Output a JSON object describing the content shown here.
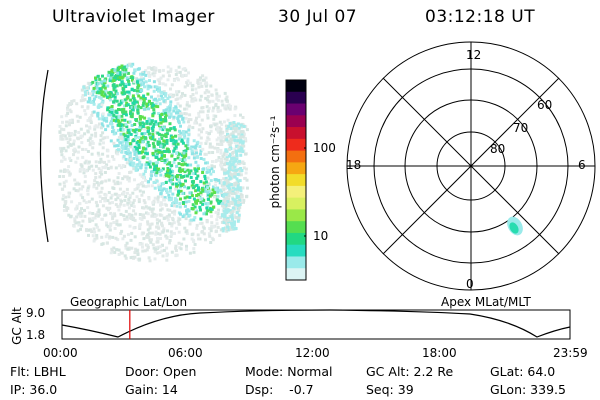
{
  "header": {
    "instrument": "Ultraviolet Imager",
    "date": "30 Jul 07",
    "time": "03:12:18 UT"
  },
  "colorbar": {
    "unit_label": "photon cm⁻²s⁻¹",
    "ticks": [
      "100",
      "10"
    ],
    "colors": [
      "#000010",
      "#2a0050",
      "#6a0070",
      "#9a0050",
      "#c8102e",
      "#ee2b1c",
      "#f36f10",
      "#f6a712",
      "#f2dc2a",
      "#f4f07a",
      "#d8f060",
      "#9ae848",
      "#55de50",
      "#22d882",
      "#28dcc0",
      "#9aeaea",
      "#dcf4f4"
    ]
  },
  "polar": {
    "lat_labels": [
      "60",
      "70",
      "80"
    ],
    "mlt_labels": {
      "top": "12",
      "bottom": "0",
      "left": "18",
      "right": "6"
    }
  },
  "timeline": {
    "left_label": "Geographic Lat/Lon",
    "right_label": "Apex MLat/MLT",
    "axis_title": "GC Alt",
    "y_ticks": [
      "9.0",
      "1.8"
    ],
    "x_ticks": [
      "00:00",
      "06:00",
      "12:00",
      "18:00",
      "23:59"
    ],
    "marker_time_fraction": 0.1335,
    "marker_color": "#e00000"
  },
  "info": {
    "flt": "Flt: LBHL",
    "ip": "IP: 36.0",
    "door": "Door: Open",
    "gain": "Gain: 14",
    "mode": "Mode: Normal",
    "dsp": "Dsp:    -0.7",
    "gcalt": "GC Alt: 2.2 Re",
    "seq": "Seq: 39",
    "glat": "GLat: 64.0",
    "glon": "GLon: 339.5"
  }
}
